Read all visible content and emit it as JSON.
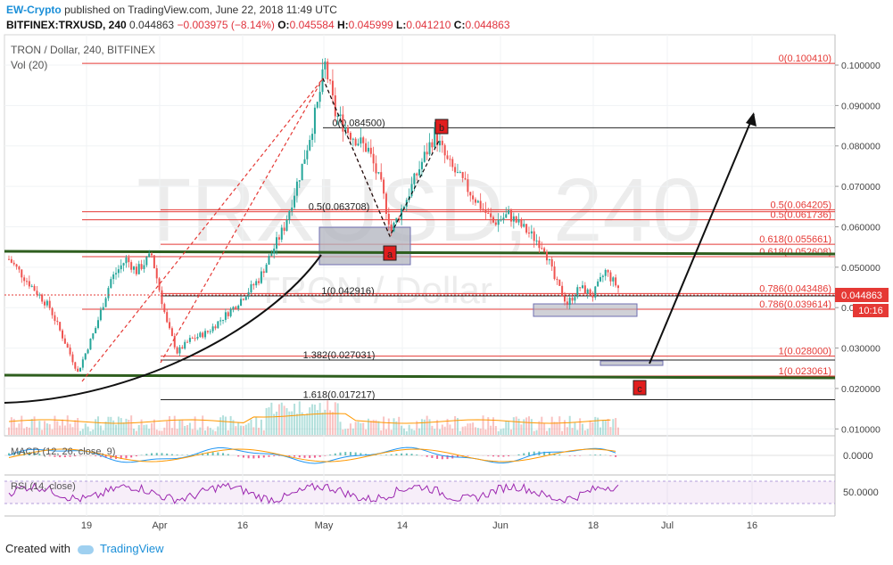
{
  "header": {
    "author": "EW-Crypto",
    "published_text": "published on TradingView.com, June 22, 2018 11:49 UTC",
    "symbol": "BITFINEX:TRXUSD, 240",
    "last": "0.044863",
    "change": "−0.003975 (−8.14%)",
    "open_label": "O:",
    "open": "0.045584",
    "high_label": "H:",
    "high": "0.045999",
    "low_label": "L:",
    "low": "0.041210",
    "close_label": "C:",
    "close": "0.044863"
  },
  "legend": {
    "title": "TRON / Dollar, 240, BITFINEX",
    "volume": "Vol (20)"
  },
  "watermark": {
    "big": "TRXUSD, 240",
    "small": "TRON / Dollar"
  },
  "footer": {
    "created_with": "Created with",
    "brand": "TradingView"
  },
  "colors": {
    "up": "#26a69a",
    "down": "#ef5350",
    "fib": "#e53935",
    "support": "#2e5e1e",
    "macd": "#2196f3",
    "signal": "#ff9800",
    "rsi": "#9c27b0"
  },
  "chart_data": {
    "type": "line",
    "title": "TRON / Dollar, 240, BITFINEX",
    "x_ticks": [
      "19",
      "Apr",
      "16",
      "May",
      "14",
      "Jun",
      "18",
      "Jul",
      "16"
    ],
    "y_ticks": [
      "0.100000",
      "0.090000",
      "0.080000",
      "0.070000",
      "0.060000",
      "0.050000",
      "0.040000",
      "0.030000",
      "0.020000",
      "0.010000"
    ],
    "ylim": [
      0.0083,
      0.1075
    ],
    "current_price_label": "0.044863",
    "countdown_label": "10:16",
    "price_path": [
      {
        "x": 0,
        "y": 0.052
      },
      {
        "x": 8,
        "y": 0.046
      },
      {
        "x": 16,
        "y": 0.04
      },
      {
        "x": 23,
        "y": 0.03
      },
      {
        "x": 27,
        "y": 0.024
      },
      {
        "x": 34,
        "y": 0.035
      },
      {
        "x": 40,
        "y": 0.047
      },
      {
        "x": 46,
        "y": 0.052
      },
      {
        "x": 50,
        "y": 0.049
      },
      {
        "x": 56,
        "y": 0.053
      },
      {
        "x": 62,
        "y": 0.036
      },
      {
        "x": 66,
        "y": 0.029
      },
      {
        "x": 71,
        "y": 0.032
      },
      {
        "x": 78,
        "y": 0.034
      },
      {
        "x": 88,
        "y": 0.04
      },
      {
        "x": 98,
        "y": 0.047
      },
      {
        "x": 108,
        "y": 0.06
      },
      {
        "x": 115,
        "y": 0.075
      },
      {
        "x": 121,
        "y": 0.09
      },
      {
        "x": 124,
        "y": 0.1
      },
      {
        "x": 128,
        "y": 0.088
      },
      {
        "x": 134,
        "y": 0.083
      },
      {
        "x": 141,
        "y": 0.079
      },
      {
        "x": 146,
        "y": 0.07
      },
      {
        "x": 150,
        "y": 0.059
      },
      {
        "x": 156,
        "y": 0.067
      },
      {
        "x": 162,
        "y": 0.076
      },
      {
        "x": 167,
        "y": 0.083
      },
      {
        "x": 172,
        "y": 0.076
      },
      {
        "x": 178,
        "y": 0.071
      },
      {
        "x": 184,
        "y": 0.066
      },
      {
        "x": 190,
        "y": 0.061
      },
      {
        "x": 196,
        "y": 0.063
      },
      {
        "x": 203,
        "y": 0.059
      },
      {
        "x": 210,
        "y": 0.055
      },
      {
        "x": 214,
        "y": 0.047
      },
      {
        "x": 219,
        "y": 0.041
      },
      {
        "x": 224,
        "y": 0.045
      },
      {
        "x": 229,
        "y": 0.043
      },
      {
        "x": 234,
        "y": 0.049
      },
      {
        "x": 239,
        "y": 0.044863
      }
    ],
    "fib_levels": [
      {
        "label": "0(0.100410)",
        "value": 0.10041,
        "color": "#e53935"
      },
      {
        "label": "0(0.084500)",
        "value": 0.0845,
        "color": "#222222"
      },
      {
        "label": "0.5(0.064205)",
        "value": 0.064205,
        "color": "#e53935"
      },
      {
        "label": "0.5(0.063708)",
        "value": 0.063708,
        "color": "#e53935"
      },
      {
        "label": "0.5(0.061736)",
        "value": 0.061736,
        "color": "#e53935"
      },
      {
        "label": "0.618(0.055661)",
        "value": 0.055661,
        "color": "#e53935"
      },
      {
        "label": "0.618(0.052608)",
        "value": 0.052608,
        "color": "#e53935"
      },
      {
        "label": "0.786(0.043486)",
        "value": 0.043486,
        "color": "#e53935"
      },
      {
        "label": "1(0.042916)",
        "value": 0.042916,
        "color": "#222222"
      },
      {
        "label": "0.786(0.039614)",
        "value": 0.039614,
        "color": "#e53935"
      },
      {
        "label": "1(0.028000)",
        "value": 0.028,
        "color": "#e53935"
      },
      {
        "label": "1.382(0.027031)",
        "value": 0.027031,
        "color": "#222222"
      },
      {
        "label": "1(0.023061)",
        "value": 0.023061,
        "color": "#e53935"
      },
      {
        "label": "1.618(0.017217)",
        "value": 0.017217,
        "color": "#222222"
      }
    ],
    "wave_labels": [
      "a",
      "b",
      "c"
    ],
    "indicators": [
      {
        "name": "MACD (12, 26, close, 9)",
        "ticks": [
          "0.0000"
        ]
      },
      {
        "name": "RSI (14, close)",
        "ticks": [
          "50.0000"
        ]
      }
    ]
  }
}
